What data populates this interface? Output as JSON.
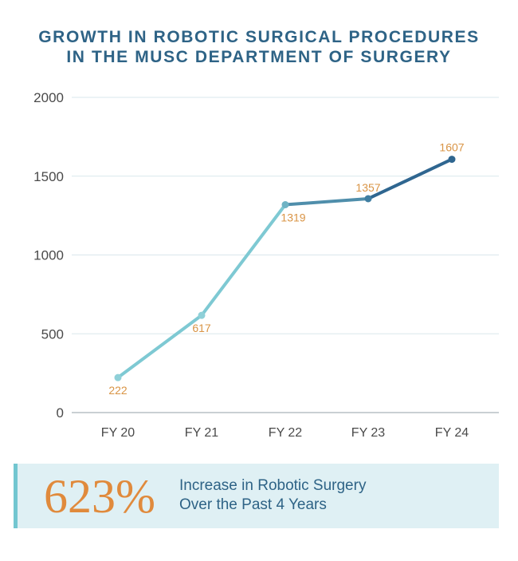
{
  "title": {
    "line1": "GROWTH IN ROBOTIC SURGICAL PROCEDURES",
    "line2": "IN THE MUSC DEPARTMENT OF SURGERY"
  },
  "chart_data": {
    "type": "line",
    "categories": [
      "FY 20",
      "FY 21",
      "FY 22",
      "FY 23",
      "FY 24"
    ],
    "values": [
      222,
      617,
      1319,
      1357,
      1607
    ],
    "data_labels": [
      "222",
      "617",
      "1319",
      "1357",
      "1607"
    ],
    "y_ticks": [
      0,
      500,
      1000,
      1500,
      2000
    ],
    "ylim": [
      0,
      2000
    ],
    "grid": true,
    "colors": {
      "line_light": "#7ec9d3",
      "line_dark": "#2f6690",
      "point_light": "#8fd0d8",
      "point_dark": "#2f6690",
      "data_label": "#d99445",
      "axis_text": "#4a4a4a",
      "grid": "#d9e7ec"
    }
  },
  "callout": {
    "percent": "623%",
    "line1": "Increase in Robotic Surgery",
    "line2": "Over the Past 4 Years",
    "colors": {
      "background": "#dff0f4",
      "bar": "#72c6d0",
      "percent": "#e08a3c",
      "text": "#2e6386"
    }
  }
}
